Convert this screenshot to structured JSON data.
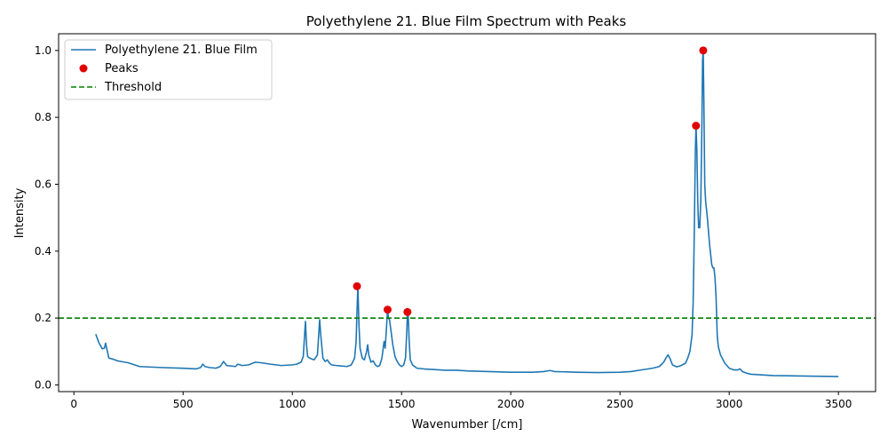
{
  "chart_data": {
    "type": "line",
    "title": "Polyethylene 21. Blue Film Spectrum with Peaks",
    "xlabel": "Wavenumber [/cm]",
    "ylabel": "Intensity",
    "xlim": [
      -70,
      3670
    ],
    "ylim": [
      -0.02,
      1.05
    ],
    "x_ticks": [
      0,
      500,
      1000,
      1500,
      2000,
      2500,
      3000,
      3500
    ],
    "y_ticks": [
      0.0,
      0.2,
      0.4,
      0.6,
      0.8,
      1.0
    ],
    "grid": false,
    "legend_position": "upper-left",
    "threshold": 0.2,
    "series": [
      {
        "name": "Polyethylene 21. Blue Film",
        "type": "line",
        "color": "#1f77b4",
        "x": [
          100,
          115,
          130,
          140,
          145,
          150,
          160,
          175,
          200,
          250,
          300,
          400,
          500,
          560,
          580,
          590,
          600,
          620,
          650,
          670,
          685,
          700,
          740,
          750,
          770,
          800,
          830,
          860,
          900,
          950,
          1000,
          1020,
          1040,
          1050,
          1060,
          1065,
          1070,
          1080,
          1100,
          1115,
          1125,
          1130,
          1140,
          1150,
          1160,
          1170,
          1180,
          1200,
          1250,
          1270,
          1285,
          1292,
          1296,
          1300,
          1305,
          1310,
          1320,
          1330,
          1340,
          1345,
          1350,
          1360,
          1370,
          1380,
          1390,
          1400,
          1410,
          1420,
          1425,
          1430,
          1436,
          1440,
          1445,
          1450,
          1460,
          1470,
          1480,
          1490,
          1500,
          1510,
          1518,
          1524,
          1527,
          1530,
          1535,
          1540,
          1550,
          1570,
          1600,
          1650,
          1700,
          1750,
          1800,
          1900,
          2000,
          2100,
          2150,
          2180,
          2200,
          2300,
          2400,
          2500,
          2550,
          2600,
          2650,
          2680,
          2700,
          2710,
          2720,
          2730,
          2740,
          2760,
          2780,
          2800,
          2810,
          2820,
          2830,
          2835,
          2840,
          2845,
          2848,
          2852,
          2856,
          2860,
          2865,
          2870,
          2875,
          2878,
          2881,
          2884,
          2888,
          2892,
          2900,
          2910,
          2920,
          2925,
          2930,
          2935,
          2940,
          2945,
          2950,
          2960,
          2980,
          3000,
          3020,
          3040,
          3050,
          3060,
          3080,
          3100,
          3150,
          3200,
          3300,
          3400,
          3500
        ],
        "y": [
          0.152,
          0.125,
          0.108,
          0.11,
          0.125,
          0.11,
          0.08,
          0.078,
          0.072,
          0.066,
          0.055,
          0.052,
          0.05,
          0.048,
          0.052,
          0.062,
          0.055,
          0.052,
          0.05,
          0.055,
          0.07,
          0.058,
          0.055,
          0.062,
          0.058,
          0.06,
          0.068,
          0.066,
          0.062,
          0.058,
          0.06,
          0.062,
          0.068,
          0.085,
          0.19,
          0.12,
          0.085,
          0.08,
          0.075,
          0.09,
          0.195,
          0.15,
          0.08,
          0.07,
          0.075,
          0.065,
          0.06,
          0.058,
          0.055,
          0.06,
          0.08,
          0.13,
          0.22,
          0.295,
          0.18,
          0.11,
          0.08,
          0.075,
          0.1,
          0.12,
          0.09,
          0.068,
          0.072,
          0.06,
          0.055,
          0.058,
          0.08,
          0.13,
          0.11,
          0.16,
          0.225,
          0.2,
          0.195,
          0.17,
          0.12,
          0.085,
          0.07,
          0.06,
          0.055,
          0.06,
          0.08,
          0.16,
          0.215,
          0.22,
          0.13,
          0.075,
          0.06,
          0.05,
          0.048,
          0.046,
          0.044,
          0.044,
          0.042,
          0.04,
          0.038,
          0.038,
          0.04,
          0.043,
          0.04,
          0.038,
          0.037,
          0.038,
          0.04,
          0.045,
          0.05,
          0.055,
          0.068,
          0.08,
          0.09,
          0.078,
          0.06,
          0.054,
          0.058,
          0.065,
          0.08,
          0.1,
          0.15,
          0.25,
          0.45,
          0.7,
          0.775,
          0.7,
          0.55,
          0.47,
          0.47,
          0.55,
          0.78,
          0.97,
          1.0,
          0.85,
          0.6,
          0.55,
          0.5,
          0.42,
          0.36,
          0.35,
          0.35,
          0.32,
          0.26,
          0.15,
          0.115,
          0.09,
          0.065,
          0.05,
          0.045,
          0.045,
          0.048,
          0.04,
          0.035,
          0.032,
          0.03,
          0.028,
          0.027,
          0.026,
          0.025
        ]
      },
      {
        "name": "Peaks",
        "type": "scatter",
        "color": "#e00000",
        "x": [
          1296,
          1436,
          1527,
          2848,
          2881
        ],
        "y": [
          0.295,
          0.225,
          0.218,
          0.775,
          1.0
        ]
      },
      {
        "name": "Threshold",
        "type": "hline",
        "color": "#008000",
        "y": 0.2
      }
    ]
  }
}
